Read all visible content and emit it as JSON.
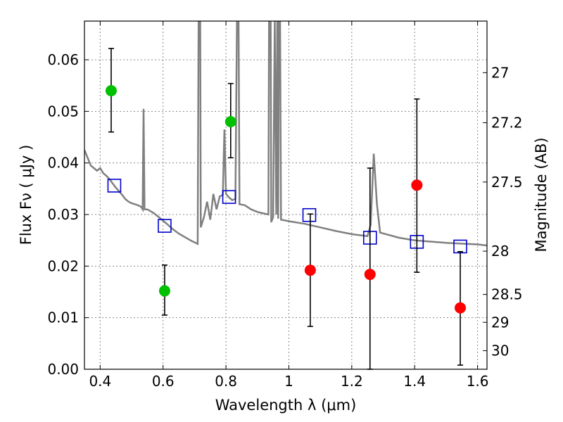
{
  "chart_data": {
    "type": "scatter",
    "xlabel": "Wavelength  λ (μm)",
    "ylabel": "Flux  Fν  ( μJy )",
    "ylabel_right": "Magnitude (AB)",
    "xlim": [
      0.35,
      1.63
    ],
    "ylim": [
      0,
      0.0675
    ],
    "grid": true,
    "x_ticks": [
      0.4,
      0.6,
      0.8,
      1.0,
      1.2,
      1.4,
      1.6
    ],
    "x_tick_labels": [
      "0.4",
      "0.6",
      "0.8",
      "1",
      "1.2",
      "1.4",
      "1.6"
    ],
    "y_ticks": [
      0,
      0.01,
      0.02,
      0.03,
      0.04,
      0.05,
      0.06
    ],
    "y_tick_labels": [
      "0.00",
      "0.01",
      "0.02",
      "0.03",
      "0.04",
      "0.05",
      "0.06"
    ],
    "right_ticks": [
      {
        "flux": 0.0575,
        "label": "27"
      },
      {
        "flux": 0.0478,
        "label": "27.2"
      },
      {
        "flux": 0.0363,
        "label": "27.5"
      },
      {
        "flux": 0.0229,
        "label": "28"
      },
      {
        "flux": 0.0145,
        "label": "28.5"
      },
      {
        "flux": 0.0091,
        "label": "29"
      },
      {
        "flux": 0.0036,
        "label": "30"
      }
    ],
    "model_spectrum": {
      "color": "#808080",
      "points": [
        [
          0.35,
          0.0425
        ],
        [
          0.36,
          0.041
        ],
        [
          0.37,
          0.0395
        ],
        [
          0.38,
          0.039
        ],
        [
          0.39,
          0.0385
        ],
        [
          0.4,
          0.039
        ],
        [
          0.41,
          0.038
        ],
        [
          0.42,
          0.0375
        ],
        [
          0.43,
          0.0368
        ],
        [
          0.44,
          0.036
        ],
        [
          0.45,
          0.0352
        ],
        [
          0.46,
          0.0345
        ],
        [
          0.47,
          0.0338
        ],
        [
          0.48,
          0.033
        ],
        [
          0.49,
          0.0325
        ],
        [
          0.5,
          0.0322
        ],
        [
          0.51,
          0.032
        ],
        [
          0.52,
          0.0318
        ],
        [
          0.53,
          0.0315
        ],
        [
          0.535,
          0.031
        ],
        [
          0.538,
          0.0505
        ],
        [
          0.541,
          0.031
        ],
        [
          0.55,
          0.031
        ],
        [
          0.57,
          0.0303
        ],
        [
          0.59,
          0.0293
        ],
        [
          0.61,
          0.0283
        ],
        [
          0.63,
          0.0272
        ],
        [
          0.65,
          0.0263
        ],
        [
          0.67,
          0.0256
        ],
        [
          0.69,
          0.0249
        ],
        [
          0.71,
          0.0243
        ],
        [
          0.713,
          0.0675
        ],
        [
          0.718,
          0.0675
        ],
        [
          0.72,
          0.0275
        ],
        [
          0.73,
          0.0295
        ],
        [
          0.74,
          0.0325
        ],
        [
          0.75,
          0.029
        ],
        [
          0.76,
          0.034
        ],
        [
          0.77,
          0.031
        ],
        [
          0.78,
          0.0335
        ],
        [
          0.79,
          0.0338
        ],
        [
          0.795,
          0.0465
        ],
        [
          0.8,
          0.034
        ],
        [
          0.81,
          0.0333
        ],
        [
          0.82,
          0.0328
        ],
        [
          0.83,
          0.033
        ],
        [
          0.835,
          0.0675
        ],
        [
          0.84,
          0.0675
        ],
        [
          0.843,
          0.032
        ],
        [
          0.86,
          0.0318
        ],
        [
          0.88,
          0.031
        ],
        [
          0.9,
          0.0305
        ],
        [
          0.92,
          0.0302
        ],
        [
          0.935,
          0.03
        ],
        [
          0.937,
          0.0675
        ],
        [
          0.942,
          0.0675
        ],
        [
          0.944,
          0.0285
        ],
        [
          0.95,
          0.0295
        ],
        [
          0.955,
          0.0675
        ],
        [
          0.96,
          0.03
        ],
        [
          0.963,
          0.0675
        ],
        [
          0.966,
          0.0292
        ],
        [
          0.968,
          0.0675
        ],
        [
          0.972,
          0.0675
        ],
        [
          0.975,
          0.029
        ],
        [
          1.0,
          0.0287
        ],
        [
          1.05,
          0.0282
        ],
        [
          1.1,
          0.0275
        ],
        [
          1.15,
          0.0268
        ],
        [
          1.2,
          0.0262
        ],
        [
          1.25,
          0.0258
        ],
        [
          1.26,
          0.028
        ],
        [
          1.27,
          0.0418
        ],
        [
          1.28,
          0.032
        ],
        [
          1.29,
          0.0265
        ],
        [
          1.35,
          0.0255
        ],
        [
          1.4,
          0.025
        ],
        [
          1.5,
          0.0245
        ],
        [
          1.6,
          0.0242
        ],
        [
          1.63,
          0.024
        ]
      ]
    },
    "model_photometry": {
      "color": "#0000cc",
      "marker": "open-square",
      "x": [
        0.445,
        0.605,
        0.81,
        1.065,
        1.258,
        1.407,
        1.545
      ],
      "y": [
        0.0356,
        0.0278,
        0.0334,
        0.0299,
        0.0255,
        0.0247,
        0.0238
      ]
    },
    "detections": {
      "color": "#00c000",
      "x": [
        0.435,
        0.605,
        0.815
      ],
      "y": [
        0.054,
        0.0152,
        0.048
      ],
      "yerr_low": [
        0.046,
        0.0105,
        0.041
      ],
      "yerr_high": [
        0.0622,
        0.0202,
        0.0554
      ]
    },
    "non_detections": {
      "color": "#ff0000",
      "x": [
        1.068,
        1.258,
        1.407,
        1.545
      ],
      "y": [
        0.0192,
        0.0184,
        0.0357,
        0.0119
      ],
      "yerr_low": [
        0.0083,
        0.0,
        0.0188,
        0.0008
      ],
      "yerr_high": [
        0.0301,
        0.039,
        0.0524,
        0.0228
      ]
    }
  }
}
